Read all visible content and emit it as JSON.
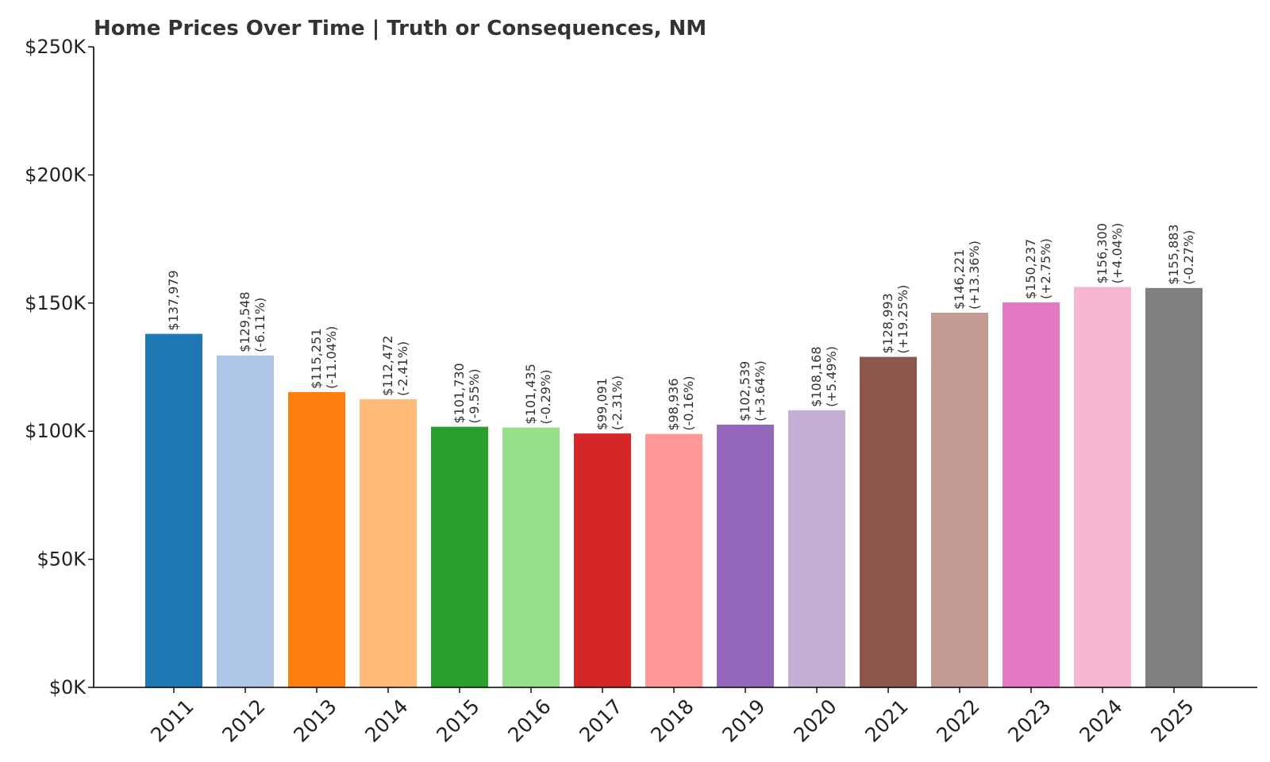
{
  "chart_data": {
    "type": "bar",
    "title": "Home Prices Over Time | Truth or Consequences, NM",
    "xlabel": "",
    "ylabel": "",
    "ylim": [
      0,
      250000
    ],
    "grid": false,
    "legend": "none",
    "yticks": [
      {
        "value": 0,
        "label": "$0K"
      },
      {
        "value": 50000,
        "label": "$50K"
      },
      {
        "value": 100000,
        "label": "$100K"
      },
      {
        "value": 150000,
        "label": "$150K"
      },
      {
        "value": 200000,
        "label": "$200K"
      },
      {
        "value": 250000,
        "label": "$250K"
      }
    ],
    "categories": [
      "2011",
      "2012",
      "2013",
      "2014",
      "2015",
      "2016",
      "2017",
      "2018",
      "2019",
      "2020",
      "2021",
      "2022",
      "2023",
      "2024",
      "2025"
    ],
    "values": [
      137979,
      129548,
      115251,
      112472,
      101730,
      101435,
      99091,
      98936,
      102539,
      108168,
      128993,
      146221,
      150237,
      156300,
      155883
    ],
    "value_labels": [
      "$137,979",
      "$129,548",
      "$115,251",
      "$112,472",
      "$101,730",
      "$101,435",
      "$99,091",
      "$98,936",
      "$102,539",
      "$108,168",
      "$128,993",
      "$146,221",
      "$150,237",
      "$156,300",
      "$155,883"
    ],
    "change_labels": [
      "",
      "(-6.11%)",
      "(-11.04%)",
      "(-2.41%)",
      "(-9.55%)",
      "(-0.29%)",
      "(-2.31%)",
      "(-0.16%)",
      "(+3.64%)",
      "(+5.49%)",
      "(+19.25%)",
      "(+13.36%)",
      "(+2.75%)",
      "(+4.04%)",
      "(-0.27%)"
    ],
    "colors": [
      "#1f77b4",
      "#aec7e8",
      "#ff7f0e",
      "#ffbb78",
      "#2ca02c",
      "#98df8a",
      "#d62728",
      "#ff9896",
      "#9467bd",
      "#c5b0d5",
      "#8c564b",
      "#c49c94",
      "#e377c2",
      "#f7b6d2",
      "#7f7f7f"
    ]
  }
}
